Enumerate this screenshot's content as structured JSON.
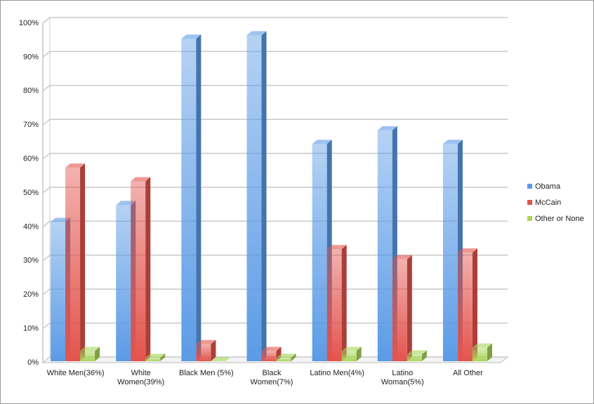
{
  "chart_data": {
    "type": "bar3d",
    "categories": [
      "White Men(36%)",
      "White Women(39%)",
      "Black Men (5%)",
      "Black Women(7%)",
      "Latino Men(4%)",
      "Latino Woman(5%)",
      "All Other"
    ],
    "series": [
      {
        "name": "Obama",
        "color": "#5b9be6",
        "values": [
          41,
          46,
          95,
          96,
          64,
          68,
          64
        ]
      },
      {
        "name": "McCain",
        "color": "#e3544d",
        "values": [
          57,
          53,
          5,
          3,
          33,
          30,
          32
        ]
      },
      {
        "name": "Other or None",
        "color": "#a9d65a",
        "values": [
          3,
          1,
          0,
          1,
          3,
          2,
          4
        ]
      }
    ],
    "ylim": [
      0,
      100
    ],
    "yticks": [
      {
        "value": 0,
        "label": "0%"
      },
      {
        "value": 10,
        "label": "10%"
      },
      {
        "value": 20,
        "label": "20%"
      },
      {
        "value": 30,
        "label": "30%"
      },
      {
        "value": 40,
        "label": "40%"
      },
      {
        "value": 50,
        "label": "50%"
      },
      {
        "value": 60,
        "label": "60%"
      },
      {
        "value": 70,
        "label": "70%"
      },
      {
        "value": 80,
        "label": "80%"
      },
      {
        "value": 90,
        "label": "90%"
      },
      {
        "value": 100,
        "label": "100%"
      }
    ],
    "grid": true,
    "legend": "right"
  }
}
